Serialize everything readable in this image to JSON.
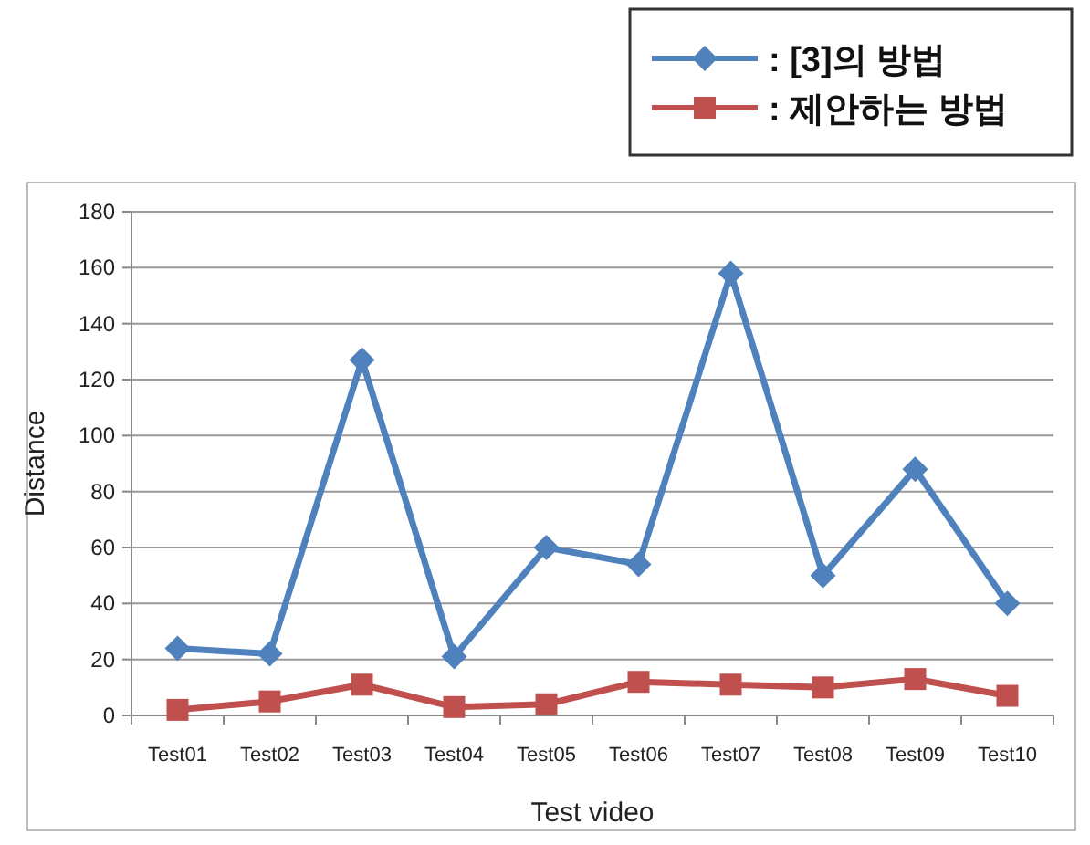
{
  "chart_data": {
    "type": "line",
    "xlabel": "Test video",
    "ylabel": "Distance",
    "categories": [
      "Test01",
      "Test02",
      "Test03",
      "Test04",
      "Test05",
      "Test06",
      "Test07",
      "Test08",
      "Test09",
      "Test10"
    ],
    "series": [
      {
        "name": ": [3]의 방법",
        "color": "#4f81bd",
        "marker": "diamond",
        "values": [
          24,
          22,
          127,
          21,
          60,
          54,
          158,
          50,
          88,
          40
        ]
      },
      {
        "name": ": 제안하는 방법",
        "color": "#c0504d",
        "marker": "square",
        "values": [
          2,
          5,
          11,
          3,
          4,
          12,
          11,
          10,
          13,
          7
        ]
      }
    ],
    "ylim": [
      0,
      180
    ],
    "yticks": [
      0,
      20,
      40,
      60,
      80,
      100,
      120,
      140,
      160,
      180
    ],
    "grid": "y",
    "legend": "top right"
  }
}
